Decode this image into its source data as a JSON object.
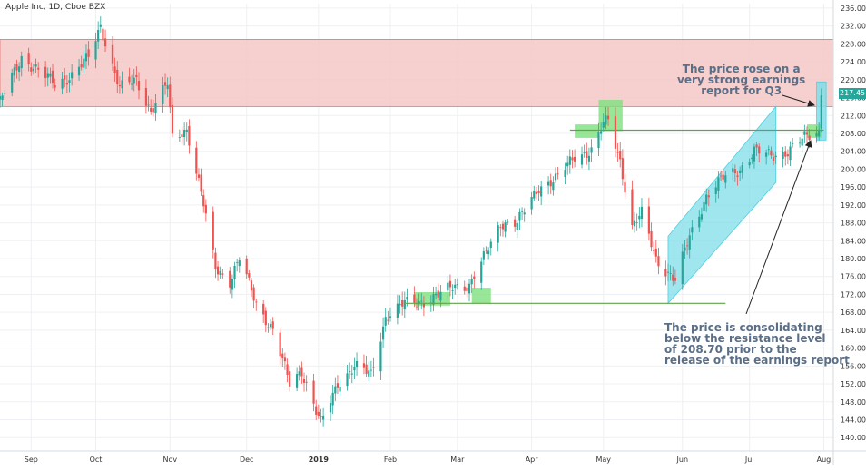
{
  "chart_data": {
    "type": "candlestick",
    "title": "Apple Inc, 1D, Cboe BZX",
    "ylim": [
      137,
      237
    ],
    "y_ticks": [
      "236.00",
      "232.00",
      "228.00",
      "224.00",
      "220.00",
      "216.00",
      "212.00",
      "208.00",
      "204.00",
      "200.00",
      "196.00",
      "192.00",
      "188.00",
      "184.00",
      "180.00",
      "176.00",
      "172.00",
      "168.00",
      "164.00",
      "160.00",
      "156.00",
      "152.00",
      "148.00",
      "144.00",
      "140.00"
    ],
    "x_start": "2018-08-22",
    "x_end": "2019-08-05",
    "x_ticks": [
      {
        "label": "Sep",
        "date": "2018-09-04"
      },
      {
        "label": "Oct",
        "date": "2018-10-01"
      },
      {
        "label": "Nov",
        "date": "2018-11-01"
      },
      {
        "label": "Dec",
        "date": "2018-12-03"
      },
      {
        "label": "2019",
        "date": "2019-01-02"
      },
      {
        "label": "Feb",
        "date": "2019-02-01"
      },
      {
        "label": "Mar",
        "date": "2019-03-01"
      },
      {
        "label": "Apr",
        "date": "2019-04-01"
      },
      {
        "label": "May",
        "date": "2019-05-01"
      },
      {
        "label": "Jun",
        "date": "2019-06-03"
      },
      {
        "label": "Jul",
        "date": "2019-07-01"
      },
      {
        "label": "Aug",
        "date": "2019-08-01"
      }
    ],
    "price_path": [
      {
        "date": "2018-08-22",
        "close": 215
      },
      {
        "date": "2018-08-31",
        "close": 225
      },
      {
        "date": "2018-09-07",
        "close": 222
      },
      {
        "date": "2018-09-14",
        "close": 219
      },
      {
        "date": "2018-09-21",
        "close": 221
      },
      {
        "date": "2018-09-28",
        "close": 225
      },
      {
        "date": "2018-10-03",
        "close": 232
      },
      {
        "date": "2018-10-11",
        "close": 218
      },
      {
        "date": "2018-10-18",
        "close": 220
      },
      {
        "date": "2018-10-24",
        "close": 213
      },
      {
        "date": "2018-10-31",
        "close": 219
      },
      {
        "date": "2018-11-02",
        "close": 207
      },
      {
        "date": "2018-11-08",
        "close": 209
      },
      {
        "date": "2018-11-15",
        "close": 192
      },
      {
        "date": "2018-11-20",
        "close": 178
      },
      {
        "date": "2018-11-26",
        "close": 175
      },
      {
        "date": "2018-11-30",
        "close": 180
      },
      {
        "date": "2018-12-07",
        "close": 170
      },
      {
        "date": "2018-12-14",
        "close": 164
      },
      {
        "date": "2018-12-21",
        "close": 152
      },
      {
        "date": "2018-12-26",
        "close": 155
      },
      {
        "date": "2019-01-03",
        "close": 143
      },
      {
        "date": "2019-01-10",
        "close": 152
      },
      {
        "date": "2019-01-17",
        "close": 156
      },
      {
        "date": "2019-01-24",
        "close": 154
      },
      {
        "date": "2019-01-30",
        "close": 167
      },
      {
        "date": "2019-02-07",
        "close": 170
      },
      {
        "date": "2019-02-15",
        "close": 170.5
      },
      {
        "date": "2019-02-22",
        "close": 172
      },
      {
        "date": "2019-02-28",
        "close": 174
      },
      {
        "date": "2019-03-06",
        "close": 174
      },
      {
        "date": "2019-03-12",
        "close": 180
      },
      {
        "date": "2019-03-19",
        "close": 188
      },
      {
        "date": "2019-03-26",
        "close": 188
      },
      {
        "date": "2019-04-04",
        "close": 196
      },
      {
        "date": "2019-04-12",
        "close": 198
      },
      {
        "date": "2019-04-19",
        "close": 203
      },
      {
        "date": "2019-04-26",
        "close": 204
      },
      {
        "date": "2019-05-01",
        "close": 210
      },
      {
        "date": "2019-05-03",
        "close": 211
      },
      {
        "date": "2019-05-08",
        "close": 202
      },
      {
        "date": "2019-05-13",
        "close": 187
      },
      {
        "date": "2019-05-17",
        "close": 190
      },
      {
        "date": "2019-05-23",
        "close": 180
      },
      {
        "date": "2019-05-31",
        "close": 175
      },
      {
        "date": "2019-06-06",
        "close": 185
      },
      {
        "date": "2019-06-13",
        "close": 194
      },
      {
        "date": "2019-06-20",
        "close": 198
      },
      {
        "date": "2019-06-27",
        "close": 200
      },
      {
        "date": "2019-07-03",
        "close": 204
      },
      {
        "date": "2019-07-10",
        "close": 203
      },
      {
        "date": "2019-07-17",
        "close": 204
      },
      {
        "date": "2019-07-24",
        "close": 207
      },
      {
        "date": "2019-07-30",
        "close": 208.5
      },
      {
        "date": "2019-07-31",
        "close": 217.45
      }
    ],
    "last_price": "217.45",
    "resistance_zone": {
      "low": 214,
      "high": 229
    },
    "support_line": {
      "price": 170,
      "from": "2019-02-07",
      "to": "2019-06-21"
    },
    "resistance_line": {
      "price": 208.7,
      "from": "2019-04-17",
      "to": "2019-08-01"
    },
    "annotations": [
      {
        "text": "The price rose on a very strong earnings report for Q3"
      },
      {
        "text": "The price is consolidating below the resistance level of 208.70 prior to the release of the earnings report"
      }
    ],
    "colors": {
      "up": "#26a69a",
      "down": "#ef5350",
      "zone": "#f4c7c7",
      "zone_border": "#e57373",
      "channel": "#80deea",
      "level": "#5fa34a",
      "highlight": "#7ee07e",
      "grid": "#eef0f3",
      "text": "#333333"
    }
  },
  "labels": {
    "title": "Apple Inc, 1D, Cboe BZX",
    "note_top": "The price rose on a\nvery strong earnings\nreport for Q3",
    "note_bottom": "The price is consolidating\nbelow the resistance level\nof 208.70 prior to the\nrelease of the earnings report",
    "price_tag": "217.45"
  }
}
